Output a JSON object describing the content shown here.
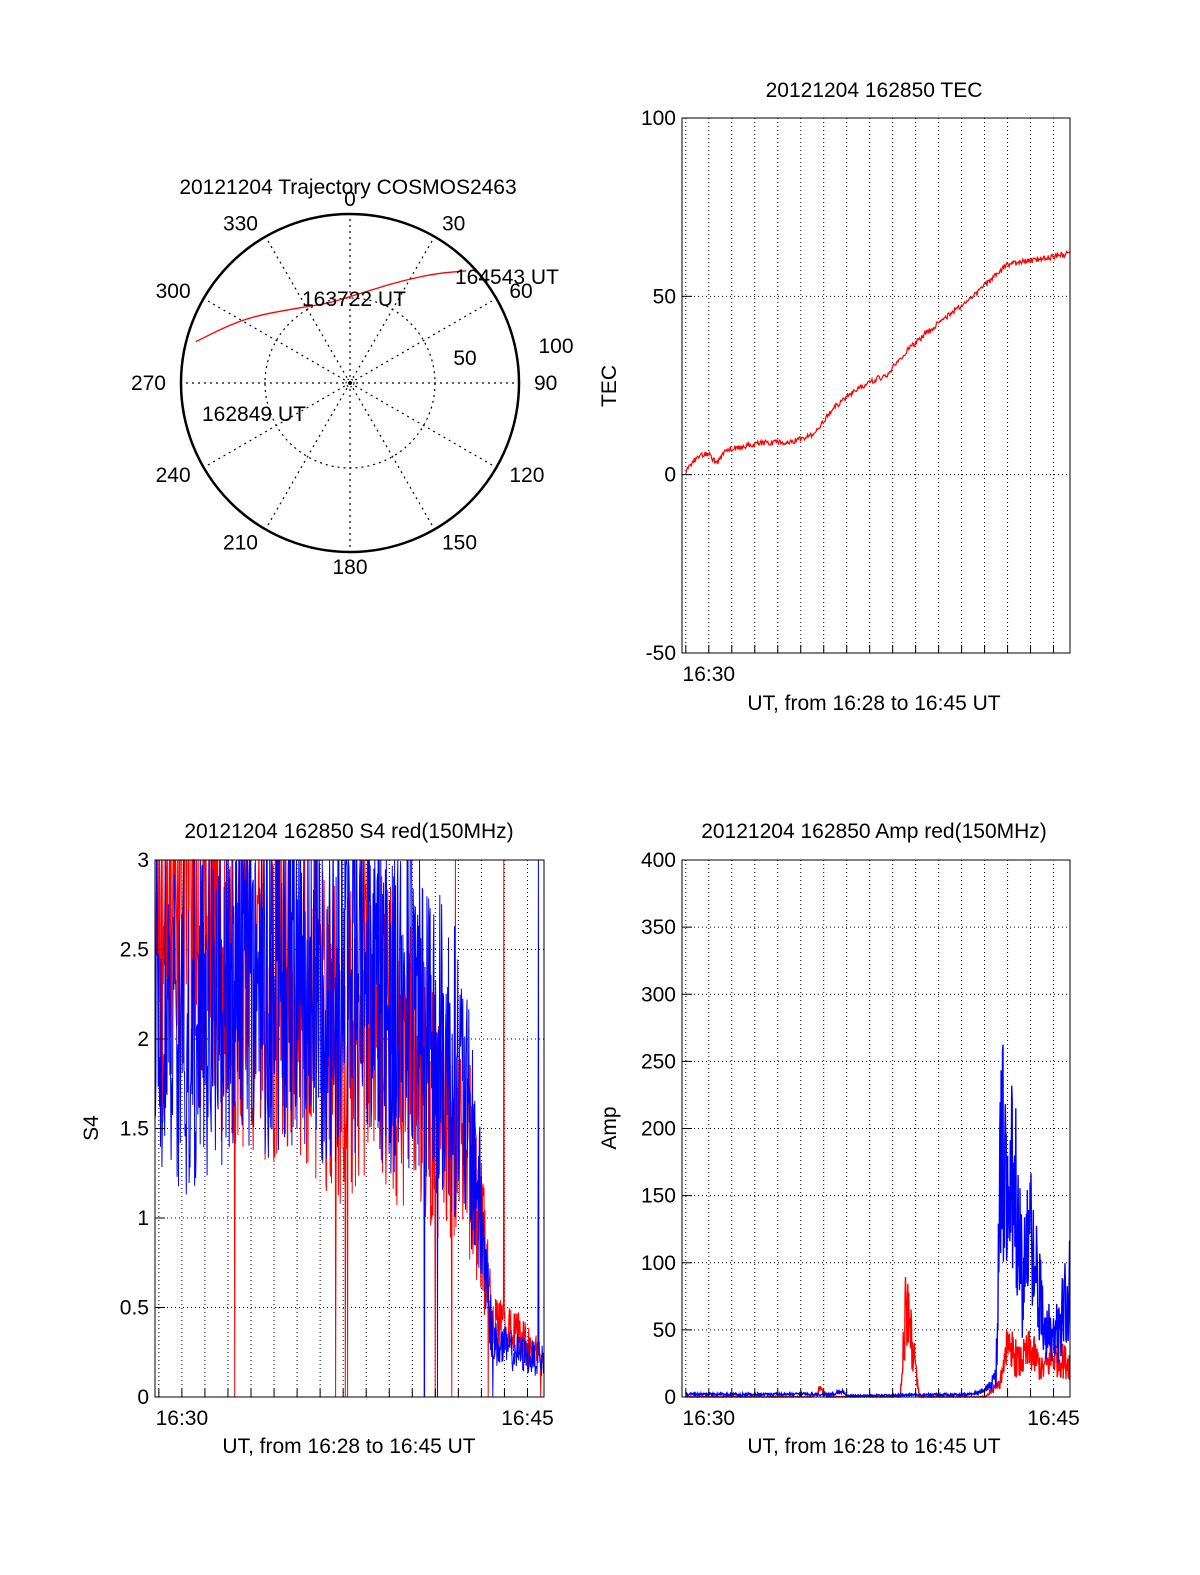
{
  "colors": {
    "red": "#ff0000",
    "blue": "#0000ff",
    "axis": "#000000",
    "grid": "#000000",
    "background": "#ffffff"
  },
  "chart_data": [
    {
      "type": "polar",
      "title": "20121204 Trajectory COSMOS2463",
      "azimuth_labels": [
        "0",
        "30",
        "60",
        "90",
        "120",
        "150",
        "180",
        "210",
        "240",
        "270",
        "300",
        "330"
      ],
      "elevation_labels": [
        "50",
        "100"
      ],
      "rings": [
        0,
        50
      ],
      "grid": true,
      "series": [
        {
          "color": "#ff0000",
          "points": [
            {
              "az": 285,
              "el": 5
            },
            {
              "az": 295,
              "el": 18
            },
            {
              "az": 305,
              "el": 28
            },
            {
              "az": 318,
              "el": 38
            },
            {
              "az": 333,
              "el": 44
            },
            {
              "az": 345,
              "el": 46
            },
            {
              "az": 0,
              "el": 44
            },
            {
              "az": 15,
              "el": 38
            },
            {
              "az": 28,
              "el": 28
            },
            {
              "az": 38,
              "el": 16
            },
            {
              "az": 46,
              "el": 4
            }
          ]
        }
      ],
      "annotations": [
        {
          "text": "162849 UT"
        },
        {
          "text": "163722 UT"
        },
        {
          "text": "164543 UT"
        }
      ]
    },
    {
      "type": "line",
      "title": "20121204 162850 TEC",
      "xlabel": "UT, from 16:28 to 16:45 UT",
      "ylabel": "TEC",
      "xlim": [
        "16:28:50",
        "16:45:43"
      ],
      "ylim": [
        -50,
        100
      ],
      "yticks": [
        "-50",
        "0",
        "50",
        "100"
      ],
      "xticks": [
        "16:30"
      ],
      "grid": true,
      "series": [
        {
          "color": "#ff0000",
          "x": [
            "16:29:00",
            "16:29:30",
            "16:30:00",
            "16:30:20",
            "16:30:45",
            "16:31:30",
            "16:32:30",
            "16:33:30",
            "16:34:30",
            "16:35:30",
            "16:36:00",
            "16:37:00",
            "16:37:45",
            "16:38:30",
            "16:39:30",
            "16:40:30",
            "16:41:30",
            "16:42:30",
            "16:43:00",
            "16:44:00",
            "16:45:43"
          ],
          "values": [
            1,
            5,
            6,
            3,
            7,
            8,
            9,
            9,
            11,
            19,
            22,
            26,
            28,
            34,
            40,
            45,
            50,
            56,
            59,
            60,
            62
          ]
        }
      ]
    },
    {
      "type": "line",
      "title": "20121204 162850 S4 red(150MHz)",
      "xlabel": "UT, from 16:28 to 16:45 UT",
      "ylabel": "S4",
      "xlim": [
        "16:28:50",
        "16:45:43"
      ],
      "ylim": [
        0,
        3
      ],
      "yticks": [
        "0",
        "0.5",
        "1",
        "1.5",
        "2",
        "2.5",
        "3"
      ],
      "xticks": [
        "16:30",
        "16:45"
      ],
      "grid": true,
      "series": [
        {
          "color": "#ff0000",
          "x": [
            "16:28:50",
            "16:30:00",
            "16:31:00",
            "16:32:00",
            "16:33:00",
            "16:34:00",
            "16:35:00",
            "16:36:00",
            "16:37:00",
            "16:38:00",
            "16:39:00",
            "16:40:00",
            "16:41:00",
            "16:42:00",
            "16:42:45",
            "16:43:30",
            "16:44:30",
            "16:45:43"
          ],
          "values": [
            2.5,
            2.8,
            2.6,
            2.4,
            2.5,
            2.3,
            2.4,
            2.1,
            1.9,
            2.2,
            2.0,
            1.8,
            1.6,
            1.5,
            1.2,
            0.4,
            0.35,
            0.2
          ]
        },
        {
          "color": "#0000ff",
          "x": [
            "16:28:50",
            "16:30:00",
            "16:31:00",
            "16:32:00",
            "16:33:00",
            "16:34:00",
            "16:35:00",
            "16:36:00",
            "16:37:00",
            "16:38:00",
            "16:39:00",
            "16:40:00",
            "16:41:00",
            "16:42:00",
            "16:42:45",
            "16:43:30",
            "16:44:30",
            "16:45:43"
          ],
          "values": [
            2.3,
            2.0,
            2.2,
            2.4,
            2.5,
            2.4,
            2.6,
            2.3,
            2.4,
            2.5,
            2.2,
            2.3,
            2.0,
            1.8,
            1.3,
            0.3,
            0.25,
            0.2
          ]
        }
      ]
    },
    {
      "type": "line",
      "title": "20121204 162850 Amp red(150MHz)",
      "xlabel": "UT, from 16:28 to 16:45 UT",
      "ylabel": "Amp",
      "xlim": [
        "16:28:50",
        "16:45:43"
      ],
      "ylim": [
        0,
        400
      ],
      "yticks": [
        "0",
        "50",
        "100",
        "150",
        "200",
        "250",
        "300",
        "350",
        "400"
      ],
      "xticks": [
        "16:30",
        "16:45"
      ],
      "grid": true,
      "series": [
        {
          "color": "#ff0000",
          "x": [
            "16:29:00",
            "16:34:30",
            "16:34:50",
            "16:35:10",
            "16:38:20",
            "16:38:35",
            "16:38:50",
            "16:39:10",
            "16:42:00",
            "16:42:40",
            "16:43:00",
            "16:43:30",
            "16:44:00",
            "16:44:30",
            "16:45:00",
            "16:45:43"
          ],
          "values": [
            0,
            0,
            6,
            0,
            0,
            70,
            40,
            0,
            0,
            10,
            40,
            25,
            35,
            20,
            30,
            25
          ]
        },
        {
          "color": "#0000ff",
          "x": [
            "16:29:00",
            "16:35:30",
            "16:35:45",
            "16:36:00",
            "16:41:30",
            "16:42:00",
            "16:42:30",
            "16:42:45",
            "16:43:00",
            "16:43:15",
            "16:43:40",
            "16:44:00",
            "16:44:30",
            "16:45:00",
            "16:45:43"
          ],
          "values": [
            2,
            2,
            5,
            1,
            2,
            5,
            15,
            200,
            120,
            180,
            80,
            130,
            60,
            40,
            80
          ]
        }
      ]
    }
  ]
}
